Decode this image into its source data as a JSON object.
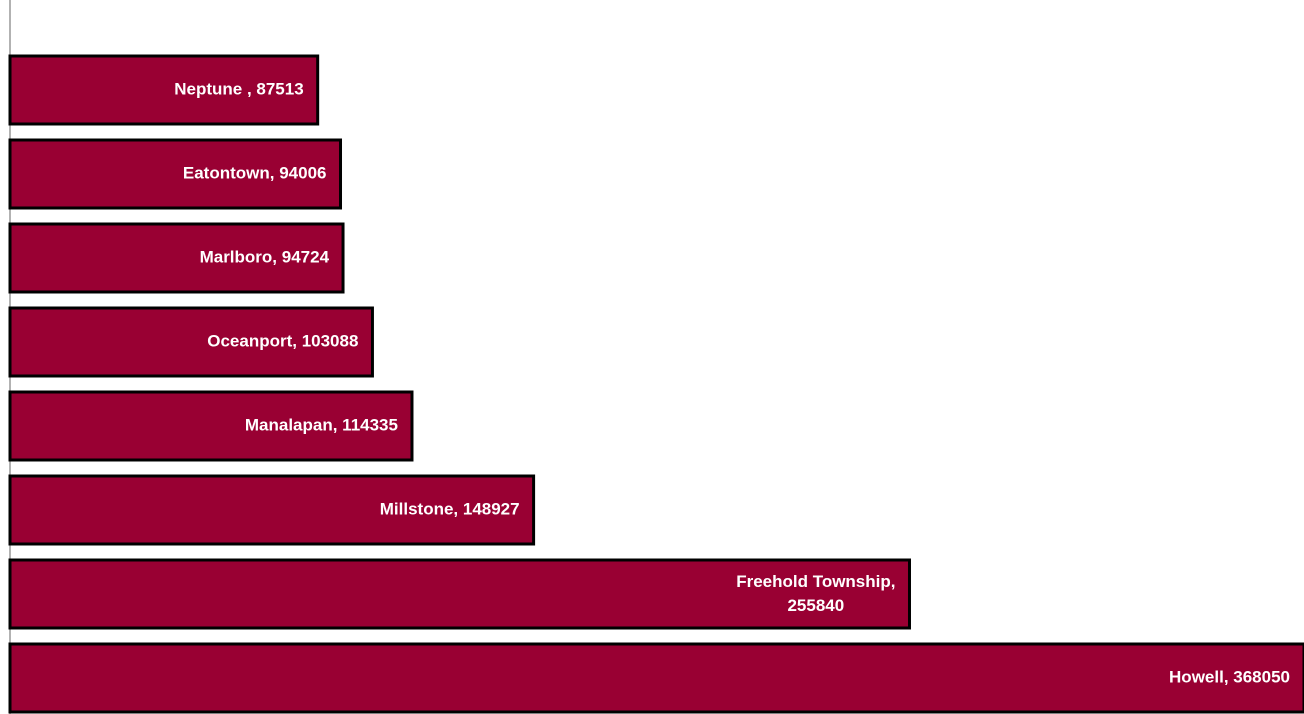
{
  "chart_data": {
    "type": "barh",
    "values": [
      87513,
      94006,
      94724,
      103088,
      114335,
      148927,
      255840,
      368050
    ],
    "value_labels": [
      "Neptune , 87513",
      "Eatontown, 94006",
      "Marlboro, 94724",
      "Oceanport, 103088",
      "Manalapan, 114335",
      "Millstone, 148927",
      "Freehold Township, 255840",
      "Howell, 368050"
    ],
    "color": "#990033",
    "xlim": [
      0,
      368050
    ]
  }
}
